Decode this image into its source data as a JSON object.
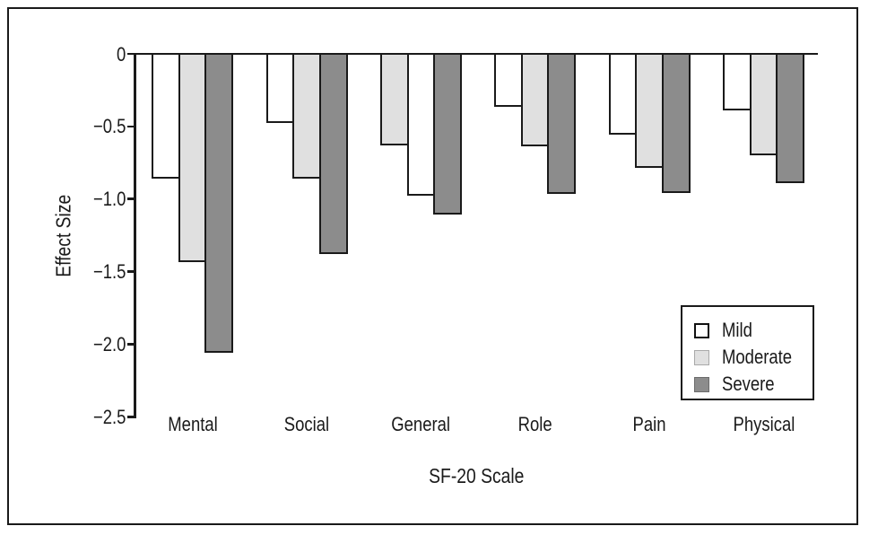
{
  "chart_data": {
    "type": "bar",
    "title": "",
    "xlabel": "SF-20 Scale",
    "ylabel": "Effect Size",
    "ylim": [
      -2.5,
      0
    ],
    "grid": false,
    "background": "#ffffff",
    "outline_color": "#1a1a1a",
    "yticks": [
      0,
      -0.5,
      -1.0,
      -1.5,
      -2.0,
      -2.5
    ],
    "ytick_labels": [
      "0",
      "−0.5",
      "−1.0",
      "−1.5",
      "−2.0",
      "−2.5"
    ],
    "categories": [
      "Mental",
      "Social",
      "General",
      "Role",
      "Pain",
      "Physical"
    ],
    "series": [
      {
        "name": "Mild",
        "fill": "#ffffff",
        "values": [
          -0.85,
          -0.47,
          -0.97,
          -0.36,
          -0.55,
          -0.38
        ]
      },
      {
        "name": "Moderate",
        "fill": "#e0e0e0",
        "values": [
          -1.43,
          -0.85,
          -0.62,
          -0.63,
          -0.78,
          -0.69
        ]
      },
      {
        "name": "Severe",
        "fill": "#8c8c8c",
        "values": [
          -2.05,
          -1.37,
          -1.1,
          -0.96,
          -0.95,
          -0.88
        ]
      }
    ],
    "bar_order_per_category": [
      [
        "Mild",
        "Moderate",
        "Severe"
      ],
      [
        "Mild",
        "Moderate",
        "Severe"
      ],
      [
        "Moderate",
        "Mild",
        "Severe"
      ],
      [
        "Mild",
        "Moderate",
        "Severe"
      ],
      [
        "Mild",
        "Moderate",
        "Severe"
      ],
      [
        "Mild",
        "Moderate",
        "Severe"
      ]
    ],
    "legend": {
      "position": "lower right",
      "entries": [
        {
          "label": "Mild",
          "fill": "#ffffff",
          "border": "#111111",
          "border_px": 2.5
        },
        {
          "label": "Moderate",
          "fill": "#e0e0e0",
          "border": "#a9a9a9",
          "border_px": 1.8
        },
        {
          "label": "Severe",
          "fill": "#8c8c8c",
          "border": "#6b6b6b",
          "border_px": 1.8
        }
      ]
    }
  }
}
